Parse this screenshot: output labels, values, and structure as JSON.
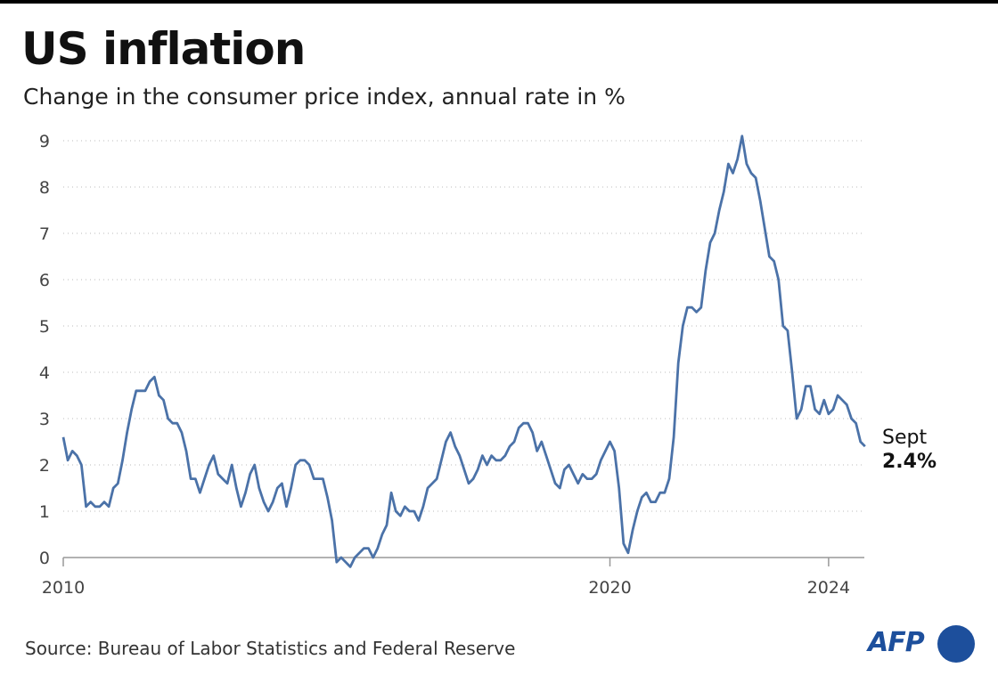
{
  "title": "US inflation",
  "subtitle": "Change in the consumer price index, annual rate in %",
  "source": "Source: Bureau of Labor Statistics and Federal Reserve",
  "logo": "AFP",
  "colors": {
    "line": "#4b72a8",
    "grid": "#bbbbbb",
    "logo": "#1d4f9c"
  },
  "chart_data": {
    "type": "line",
    "title": "US inflation",
    "subtitle": "Change in the consumer price index, annual rate in %",
    "xlabel": "",
    "ylabel": "",
    "ylim": [
      0,
      9
    ],
    "xlim": [
      "2010-01",
      "2024-09"
    ],
    "yticks": [
      0,
      1,
      2,
      3,
      4,
      5,
      6,
      7,
      8,
      9
    ],
    "xticks": [
      "2010",
      "2020",
      "2024"
    ],
    "grid": "horizontal dotted",
    "x_start": "2010-01",
    "frequency": "monthly",
    "annotation": {
      "label": "Sept",
      "value": "2.4%"
    },
    "values": [
      2.6,
      2.1,
      2.3,
      2.2,
      2.0,
      1.1,
      1.2,
      1.1,
      1.1,
      1.2,
      1.1,
      1.5,
      1.6,
      2.1,
      2.7,
      3.2,
      3.6,
      3.6,
      3.6,
      3.8,
      3.9,
      3.5,
      3.4,
      3.0,
      2.9,
      2.9,
      2.7,
      2.3,
      1.7,
      1.7,
      1.4,
      1.7,
      2.0,
      2.2,
      1.8,
      1.7,
      1.6,
      2.0,
      1.5,
      1.1,
      1.4,
      1.8,
      2.0,
      1.5,
      1.2,
      1.0,
      1.2,
      1.5,
      1.6,
      1.1,
      1.5,
      2.0,
      2.1,
      2.1,
      2.0,
      1.7,
      1.7,
      1.7,
      1.3,
      0.8,
      -0.1,
      0.0,
      -0.1,
      -0.2,
      0.0,
      0.1,
      0.2,
      0.2,
      0.0,
      0.2,
      0.5,
      0.7,
      1.4,
      1.0,
      0.9,
      1.1,
      1.0,
      1.0,
      0.8,
      1.1,
      1.5,
      1.6,
      1.7,
      2.1,
      2.5,
      2.7,
      2.4,
      2.2,
      1.9,
      1.6,
      1.7,
      1.9,
      2.2,
      2.0,
      2.2,
      2.1,
      2.1,
      2.2,
      2.4,
      2.5,
      2.8,
      2.9,
      2.9,
      2.7,
      2.3,
      2.5,
      2.2,
      1.9,
      1.6,
      1.5,
      1.9,
      2.0,
      1.8,
      1.6,
      1.8,
      1.7,
      1.7,
      1.8,
      2.1,
      2.3,
      2.5,
      2.3,
      1.5,
      0.3,
      0.1,
      0.6,
      1.0,
      1.3,
      1.4,
      1.2,
      1.2,
      1.4,
      1.4,
      1.7,
      2.6,
      4.2,
      5.0,
      5.4,
      5.4,
      5.3,
      5.4,
      6.2,
      6.8,
      7.0,
      7.5,
      7.9,
      8.5,
      8.3,
      8.6,
      9.1,
      8.5,
      8.3,
      8.2,
      7.7,
      7.1,
      6.5,
      6.4,
      6.0,
      5.0,
      4.9,
      4.0,
      3.0,
      3.2,
      3.7,
      3.7,
      3.2,
      3.1,
      3.4,
      3.1,
      3.2,
      3.5,
      3.4,
      3.3,
      3.0,
      2.9,
      2.5,
      2.4
    ]
  }
}
